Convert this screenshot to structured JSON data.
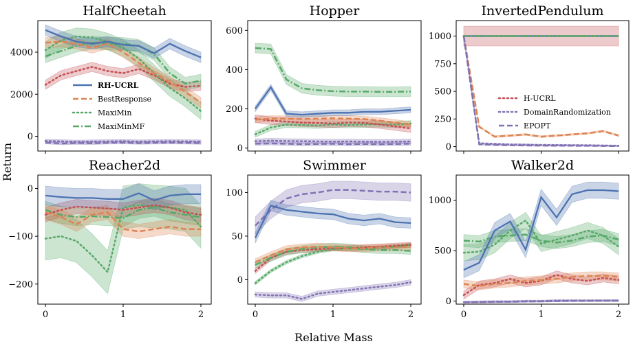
{
  "figure": {
    "ylabel": "Return",
    "xlabel": "Relative Mass"
  },
  "series_styles": {
    "RH-UCRL": {
      "color": "#4c72b0",
      "dash": "solid"
    },
    "BestResponse": {
      "color": "#dd8452",
      "dash": "dashed"
    },
    "MaxiMin": {
      "color": "#55a868",
      "dash": "dotted"
    },
    "MaxiMinMF": {
      "color": "#55a868",
      "dash": "dashdot"
    },
    "H-UCRL": {
      "color": "#c44e52",
      "dash": "dotted"
    },
    "DomainRandomization": {
      "color": "#8172b3",
      "dash": "dotted"
    },
    "EPOPT": {
      "color": "#8172b3",
      "dash": "dashed"
    }
  },
  "chart_data": [
    {
      "type": "line",
      "title": "HalfCheetah",
      "ylim": [
        -700,
        5500
      ],
      "yticks": [
        0,
        2000,
        4000
      ],
      "yticklabels": [
        "0",
        "2000",
        "4000"
      ],
      "xticks": [
        0,
        1,
        2
      ],
      "xticklabels": [
        "",
        "",
        ""
      ],
      "x": [
        0,
        0.2,
        0.4,
        0.6,
        0.8,
        1.0,
        1.2,
        1.4,
        1.6,
        1.8,
        2.0
      ],
      "legend": {
        "entries": [
          "RH-UCRL",
          "BestResponse",
          "MaxiMin",
          "MaxiMinMF"
        ]
      },
      "series": [
        {
          "name": "H-UCRL",
          "values": [
            2450,
            2900,
            3100,
            3300,
            3100,
            3000,
            3200,
            2900,
            2500,
            2350,
            2400
          ],
          "band": 220
        },
        {
          "name": "DomainRandomization",
          "values": [
            -220,
            -240,
            -260,
            -250,
            -240,
            -230,
            -250,
            -240,
            -230,
            -240,
            -250
          ],
          "band": 80
        },
        {
          "name": "EPOPT",
          "values": [
            -300,
            -340,
            -320,
            -330,
            -310,
            -300,
            -320,
            -310,
            -300,
            -310,
            -320
          ],
          "band": 60
        },
        {
          "name": "MaxiMin",
          "values": [
            4100,
            4550,
            4750,
            4700,
            4500,
            4200,
            3700,
            3000,
            2300,
            1800,
            1200
          ],
          "band": 400
        },
        {
          "name": "MaxiMinMF",
          "values": [
            3800,
            4050,
            4300,
            4450,
            4400,
            4400,
            4300,
            3900,
            3000,
            2500,
            2650
          ],
          "band": 300
        },
        {
          "name": "BestResponse",
          "values": [
            4450,
            4500,
            4400,
            4200,
            4400,
            4000,
            3500,
            3000,
            2600,
            2100,
            1600
          ],
          "band": 250
        },
        {
          "name": "RH-UCRL",
          "values": [
            5050,
            4750,
            4500,
            4400,
            4500,
            4350,
            4300,
            3950,
            4400,
            4050,
            3750
          ],
          "band": 250
        }
      ]
    },
    {
      "type": "line",
      "title": "Hopper",
      "ylim": [
        -15,
        650
      ],
      "yticks": [
        0,
        200,
        400,
        600
      ],
      "yticklabels": [
        "0",
        "200",
        "400",
        "600"
      ],
      "xticks": [
        0,
        1,
        2
      ],
      "xticklabels": [
        "",
        "",
        ""
      ],
      "x": [
        0,
        0.2,
        0.4,
        0.6,
        0.8,
        1.0,
        1.2,
        1.4,
        1.6,
        1.8,
        2.0
      ],
      "series": [
        {
          "name": "DomainRandomization",
          "values": [
            35,
            38,
            36,
            35,
            34,
            33,
            34,
            33,
            32,
            33,
            34
          ],
          "band": 12
        },
        {
          "name": "EPOPT",
          "values": [
            22,
            24,
            22,
            20,
            21,
            22,
            20,
            21,
            20,
            21,
            22
          ],
          "band": 8
        },
        {
          "name": "MaxiMin",
          "values": [
            70,
            105,
            120,
            118,
            115,
            120,
            118,
            120,
            122,
            120,
            125
          ],
          "band": 15
        },
        {
          "name": "H-UCRL",
          "values": [
            150,
            140,
            135,
            130,
            128,
            125,
            130,
            128,
            120,
            110,
            100
          ],
          "band": 20
        },
        {
          "name": "BestResponse",
          "values": [
            145,
            150,
            150,
            148,
            150,
            152,
            150,
            148,
            140,
            130,
            120
          ],
          "band": 15
        },
        {
          "name": "RH-UCRL",
          "values": [
            200,
            310,
            175,
            170,
            175,
            180,
            180,
            185,
            185,
            190,
            195
          ],
          "band": 15
        },
        {
          "name": "MaxiMinMF",
          "values": [
            510,
            505,
            350,
            305,
            295,
            290,
            288,
            288,
            287,
            287,
            288
          ],
          "band": 25
        }
      ]
    },
    {
      "type": "line",
      "title": "InvertedPendulum",
      "ylim": [
        -40,
        1140
      ],
      "yticks": [
        0,
        250,
        500,
        750,
        1000
      ],
      "yticklabels": [
        "0",
        "250",
        "500",
        "750",
        "1000"
      ],
      "xticks": [
        0,
        1,
        2
      ],
      "xticklabels": [
        "",
        "",
        ""
      ],
      "x": [
        0,
        0.2,
        0.4,
        0.6,
        0.8,
        1.0,
        1.2,
        1.4,
        1.6,
        1.8,
        2.0
      ],
      "legend": {
        "entries": [
          "H-UCRL",
          "DomainRandomization",
          "EPOPT"
        ]
      },
      "series": [
        {
          "name": "H-UCRL",
          "values": [
            1000,
            1000,
            1000,
            1000,
            1000,
            1000,
            1000,
            1000,
            1000,
            1000,
            1000
          ],
          "band": 90
        },
        {
          "name": "RH-UCRL",
          "values": [
            1000,
            1000,
            1000,
            1000,
            1000,
            1000,
            1000,
            1000,
            1000,
            1000,
            1000
          ],
          "band": 0
        },
        {
          "name": "MaxiMin",
          "values": [
            1000,
            1000,
            1000,
            1000,
            1000,
            1000,
            1000,
            1000,
            1000,
            1000,
            1000
          ],
          "band": 0
        },
        {
          "name": "MaxiMinMF",
          "values": [
            1000,
            1000,
            1000,
            1000,
            1000,
            1000,
            1000,
            1000,
            1000,
            1000,
            1000
          ],
          "band": 0
        },
        {
          "name": "BestResponse",
          "values": [
            1000,
            180,
            90,
            100,
            110,
            90,
            100,
            110,
            120,
            140,
            100
          ],
          "band": 8
        },
        {
          "name": "DomainRandomization",
          "values": [
            1000,
            30,
            25,
            20,
            18,
            15,
            14,
            13,
            12,
            10,
            8
          ],
          "band": 6
        },
        {
          "name": "EPOPT",
          "values": [
            1000,
            20,
            15,
            12,
            10,
            9,
            8,
            8,
            7,
            6,
            5
          ],
          "band": 4
        }
      ]
    },
    {
      "type": "line",
      "title": "Reacher2d",
      "ylim": [
        -242,
        28
      ],
      "yticks": [
        -200,
        -100,
        0
      ],
      "yticklabels": [
        "−200",
        "−100",
        "0"
      ],
      "xticks": [
        0,
        1,
        2
      ],
      "xticklabels": [
        "0",
        "1",
        "2"
      ],
      "x": [
        0,
        0.2,
        0.4,
        0.6,
        0.8,
        1.0,
        1.2,
        1.4,
        1.6,
        1.8,
        2.0
      ],
      "series": [
        {
          "name": "MaxiMin",
          "values": [
            -105,
            -100,
            -110,
            -140,
            -175,
            -40,
            -35,
            -38,
            -40,
            -45,
            -80
          ],
          "band": 45
        },
        {
          "name": "MaxiMinMF",
          "values": [
            -45,
            -55,
            -60,
            -58,
            -60,
            -62,
            -45,
            -40,
            -50,
            -55,
            -60
          ],
          "band": 18
        },
        {
          "name": "H-UCRL",
          "values": [
            -55,
            -45,
            -38,
            -40,
            -42,
            -45,
            -40,
            -35,
            -40,
            -50,
            -55
          ],
          "band": 15
        },
        {
          "name": "BestResponse",
          "values": [
            -50,
            -60,
            -75,
            -55,
            -50,
            -85,
            -90,
            -85,
            -80,
            -85,
            -85
          ],
          "band": 15
        },
        {
          "name": "RH-UCRL",
          "values": [
            -15,
            -18,
            -20,
            -20,
            -22,
            -22,
            -10,
            -25,
            -15,
            -12,
            -12
          ],
          "band": 20
        }
      ]
    },
    {
      "type": "line",
      "title": "Swimmer",
      "ylim": [
        -28,
        120
      ],
      "yticks": [
        0,
        50,
        100
      ],
      "yticklabels": [
        "0",
        "50",
        "100"
      ],
      "xticks": [
        0,
        1,
        2
      ],
      "xticklabels": [
        "0",
        "1",
        "2"
      ],
      "x": [
        0,
        0.2,
        0.4,
        0.6,
        0.8,
        1.0,
        1.2,
        1.4,
        1.6,
        1.8,
        2.0
      ],
      "series": [
        {
          "name": "EPOPT",
          "values": [
            62,
            80,
            93,
            98,
            100,
            103,
            103,
            102,
            101,
            101,
            100
          ],
          "band": 10
        },
        {
          "name": "DomainRandomization",
          "values": [
            -17,
            -18,
            -18,
            -22,
            -16,
            -14,
            -12,
            -10,
            -8,
            -6,
            -3
          ],
          "band": 3
        },
        {
          "name": "RH-UCRL",
          "values": [
            48,
            85,
            80,
            78,
            76,
            75,
            70,
            68,
            70,
            66,
            65
          ],
          "band": 6
        },
        {
          "name": "MaxiMin",
          "values": [
            -4,
            10,
            20,
            27,
            32,
            35,
            36,
            36,
            37,
            38,
            40
          ],
          "band": 2
        },
        {
          "name": "H-UCRL",
          "values": [
            10,
            25,
            32,
            34,
            35,
            36,
            36,
            37,
            38,
            39,
            40
          ],
          "band": 3
        },
        {
          "name": "MaxiMinMF",
          "values": [
            17,
            25,
            32,
            35,
            37,
            38,
            37,
            35,
            34,
            34,
            33
          ],
          "band": 4
        },
        {
          "name": "BestResponse",
          "values": [
            20,
            28,
            35,
            37,
            38,
            37,
            36,
            36,
            37,
            37,
            38
          ],
          "band": 4
        }
      ]
    },
    {
      "type": "line",
      "title": "Walker2d",
      "ylim": [
        -30,
        1250
      ],
      "yticks": [
        0,
        500,
        1000
      ],
      "yticklabels": [
        "0",
        "500",
        "1000"
      ],
      "xticks": [
        0,
        1,
        2
      ],
      "xticklabels": [
        "0",
        "1",
        "2"
      ],
      "x": [
        0,
        0.2,
        0.4,
        0.6,
        0.8,
        1.0,
        1.2,
        1.4,
        1.6,
        1.8,
        2.0
      ],
      "series": [
        {
          "name": "DomainRandomization",
          "values": [
            -10,
            -8,
            -5,
            -5,
            0,
            0,
            5,
            5,
            5,
            5,
            5
          ],
          "band": 10
        },
        {
          "name": "EPOPT",
          "values": [
            -12,
            -10,
            -8,
            -6,
            -4,
            -2,
            0,
            2,
            3,
            4,
            5
          ],
          "band": 5
        },
        {
          "name": "H-UCRL",
          "values": [
            60,
            160,
            180,
            220,
            180,
            200,
            260,
            220,
            200,
            230,
            210
          ],
          "band": 40
        },
        {
          "name": "BestResponse",
          "values": [
            170,
            150,
            170,
            180,
            200,
            210,
            220,
            240,
            250,
            250,
            240
          ],
          "band": 40
        },
        {
          "name": "MaxiMin",
          "values": [
            480,
            490,
            560,
            700,
            800,
            570,
            610,
            650,
            700,
            650,
            540
          ],
          "band": 80
        },
        {
          "name": "MaxiMinMF",
          "values": [
            600,
            590,
            640,
            650,
            660,
            600,
            580,
            600,
            640,
            650,
            610
          ],
          "band": 60
        },
        {
          "name": "RH-UCRL",
          "values": [
            310,
            380,
            700,
            790,
            510,
            1030,
            830,
            1060,
            1100,
            1100,
            1090
          ],
          "band": 80
        }
      ]
    }
  ]
}
